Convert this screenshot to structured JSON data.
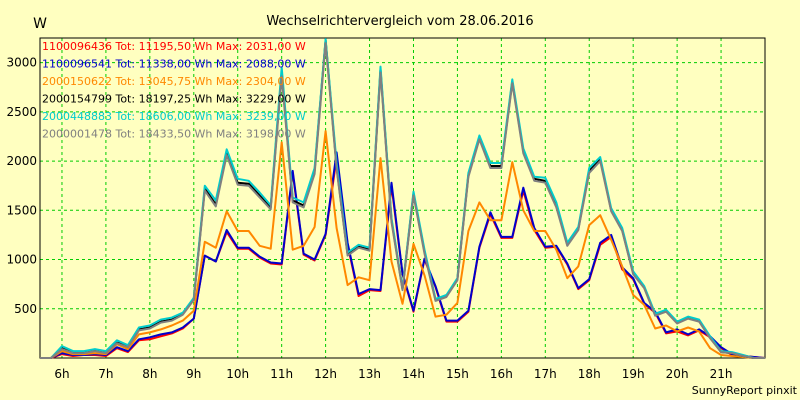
{
  "chart_data": {
    "type": "line",
    "title": "Wechselrichtervergleich vom 28.06.2016",
    "ylabel": "W",
    "footer": "SunnyReport pinxit",
    "x_start": "5:30",
    "x_step_minutes": 15,
    "xlim": [
      "5:30",
      "22:00"
    ],
    "x_ticks": [
      "6h",
      "7h",
      "8h",
      "9h",
      "10h",
      "11h",
      "12h",
      "13h",
      "14h",
      "15h",
      "16h",
      "17h",
      "18h",
      "19h",
      "20h",
      "21h"
    ],
    "ylim": [
      0,
      3250
    ],
    "y_ticks": [
      "500",
      "1000",
      "1500",
      "2000",
      "2500",
      "3000"
    ],
    "grid": true,
    "legend_placement": "top-left",
    "series": [
      {
        "name": "1100096436 Tot: 11195,50 Wh Max: 2031,00 W",
        "color": "#ff0000",
        "values": [
          0,
          0,
          40,
          20,
          30,
          30,
          20,
          100,
          60,
          180,
          190,
          220,
          250,
          300,
          400,
          1040,
          980,
          1280,
          1110,
          1110,
          1020,
          960,
          950,
          1880,
          1050,
          990,
          1250,
          2031,
          1150,
          630,
          690,
          680,
          1750,
          850,
          470,
          1000,
          720,
          370,
          370,
          470,
          1120,
          1460,
          1220,
          1220,
          1700,
          1300,
          1120,
          1130,
          950,
          700,
          790,
          1150,
          1230,
          900,
          800,
          550,
          460,
          250,
          270,
          230,
          280,
          210,
          100,
          30,
          20,
          10,
          0
        ]
      },
      {
        "name": "1100096541 Tot: 11338,00 Wh Max: 2088,00 W",
        "color": "#0000cc",
        "values": [
          0,
          0,
          50,
          30,
          30,
          40,
          30,
          110,
          70,
          190,
          210,
          240,
          260,
          310,
          400,
          1040,
          980,
          1300,
          1120,
          1120,
          1030,
          970,
          960,
          1900,
          1060,
          1000,
          1260,
          2088,
          1170,
          650,
          700,
          690,
          1780,
          860,
          480,
          1010,
          730,
          380,
          380,
          480,
          1130,
          1480,
          1230,
          1230,
          1730,
          1320,
          1130,
          1140,
          960,
          710,
          800,
          1170,
          1250,
          920,
          810,
          560,
          470,
          260,
          290,
          240,
          290,
          220,
          110,
          40,
          20,
          10,
          0
        ]
      },
      {
        "name": "2000150622 Tot: 13045,75 Wh Max: 2304,00 W",
        "color": "#ff8800",
        "values": [
          0,
          0,
          70,
          40,
          40,
          50,
          40,
          140,
          90,
          240,
          260,
          290,
          330,
          380,
          480,
          1180,
          1120,
          1490,
          1290,
          1290,
          1140,
          1110,
          2190,
          1100,
          1140,
          1330,
          2304,
          1320,
          740,
          820,
          790,
          2030,
          980,
          550,
          1160,
          840,
          420,
          440,
          560,
          1290,
          1580,
          1400,
          1400,
          1990,
          1500,
          1290,
          1290,
          1100,
          810,
          930,
          1350,
          1450,
          1200,
          930,
          640,
          540,
          300,
          330,
          270,
          310,
          270,
          100,
          30,
          20,
          10,
          0,
          0
        ]
      },
      {
        "name": "2000154799 Tot: 18197,25 Wh Max: 3229,00 W",
        "color": "#000000",
        "values": [
          0,
          0,
          100,
          60,
          60,
          80,
          60,
          160,
          120,
          290,
          310,
          370,
          390,
          450,
          600,
          1720,
          1560,
          2080,
          1780,
          1770,
          1650,
          1530,
          2900,
          1600,
          1550,
          1900,
          3229,
          1940,
          1050,
          1130,
          1100,
          2930,
          1400,
          700,
          1670,
          1080,
          590,
          630,
          800,
          1860,
          2240,
          1950,
          1950,
          2810,
          2100,
          1820,
          1800,
          1550,
          1150,
          1310,
          1900,
          2020,
          1500,
          1300,
          860,
          720,
          440,
          480,
          360,
          410,
          380,
          210,
          60,
          50,
          20,
          0,
          0
        ]
      },
      {
        "name": "2000448883 Tot: 18606,00 Wh Max: 3239,00 W",
        "color": "#00cccc",
        "values": [
          0,
          0,
          120,
          70,
          70,
          90,
          70,
          180,
          130,
          310,
          330,
          390,
          410,
          460,
          610,
          1750,
          1600,
          2120,
          1820,
          1800,
          1680,
          1550,
          2950,
          1630,
          1580,
          1930,
          3239,
          1980,
          1070,
          1150,
          1120,
          2960,
          1420,
          710,
          1690,
          1100,
          600,
          640,
          810,
          1880,
          2260,
          1980,
          1980,
          2830,
          2130,
          1840,
          1830,
          1580,
          1170,
          1330,
          1930,
          2040,
          1520,
          1320,
          880,
          730,
          450,
          490,
          370,
          420,
          390,
          220,
          70,
          60,
          30,
          0,
          0
        ]
      },
      {
        "name": "2000001478 Tot: 18433,50 Wh Max: 3198,00 W",
        "color": "#808080",
        "values": [
          0,
          0,
          90,
          50,
          50,
          70,
          50,
          150,
          110,
          280,
          300,
          360,
          380,
          440,
          590,
          1700,
          1540,
          2060,
          1760,
          1750,
          1630,
          1510,
          2860,
          1580,
          1530,
          1870,
          3198,
          1920,
          1040,
          1120,
          1090,
          2900,
          1380,
          690,
          1650,
          1060,
          580,
          620,
          790,
          1840,
          2220,
          1930,
          1930,
          2790,
          2080,
          1800,
          1780,
          1530,
          1140,
          1300,
          1880,
          2000,
          1490,
          1290,
          850,
          710,
          430,
          470,
          350,
          400,
          370,
          200,
          60,
          50,
          20,
          0,
          0
        ]
      }
    ]
  }
}
